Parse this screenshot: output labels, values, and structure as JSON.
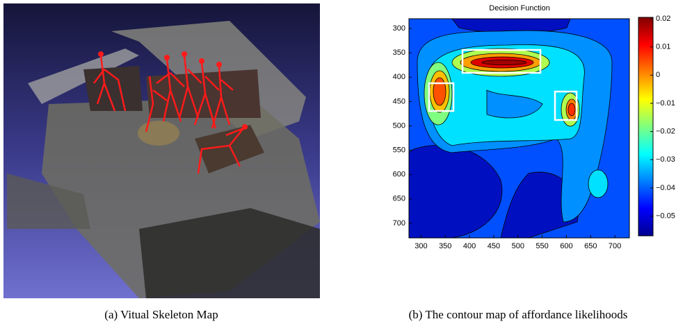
{
  "figure": {
    "captions": [
      "(a) Vitual Skeleton Map",
      "(b) The contour map of affordance likelihoods"
    ]
  },
  "chart_data": {
    "type": "contour",
    "title": "Decision Function",
    "xlim": [
      275,
      730
    ],
    "ylim": [
      280,
      730
    ],
    "y_inverted": true,
    "xticks": [
      300,
      350,
      400,
      450,
      500,
      550,
      600,
      650,
      700
    ],
    "yticks": [
      300,
      350,
      400,
      450,
      500,
      550,
      600,
      650,
      700
    ],
    "colorbar": {
      "lim": [
        -0.057,
        0.0205
      ],
      "colormap": "jet",
      "ticks": [
        0.02,
        0.01,
        0,
        {
          "value": -0.01,
          "label": "−0.01"
        },
        {
          "value": -0.02,
          "label": "−0.02"
        },
        {
          "value": -0.03,
          "label": "−0.03"
        },
        {
          "value": -0.04,
          "label": "−0.04"
        },
        {
          "value": -0.05,
          "label": "−0.05"
        }
      ]
    }
  }
}
